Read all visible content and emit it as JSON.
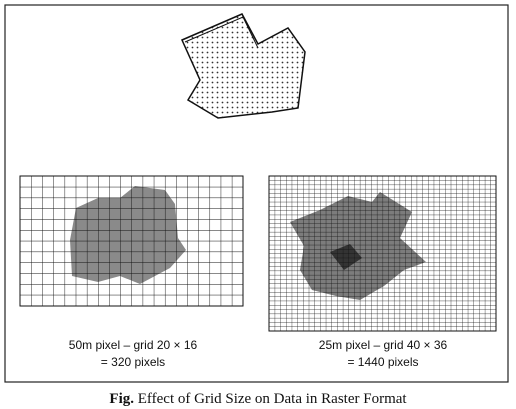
{
  "panels": [
    {
      "caption_lines": [
        "50m pixel – grid 20 × 16",
        "= 320 pixels"
      ]
    },
    {
      "caption_lines": [
        "25m pixel – grid 40 × 36",
        "= 1440 pixels"
      ]
    }
  ],
  "caption": {
    "label": "Fig.",
    "text": "Effect of Grid Size on Data in Raster Format"
  }
}
